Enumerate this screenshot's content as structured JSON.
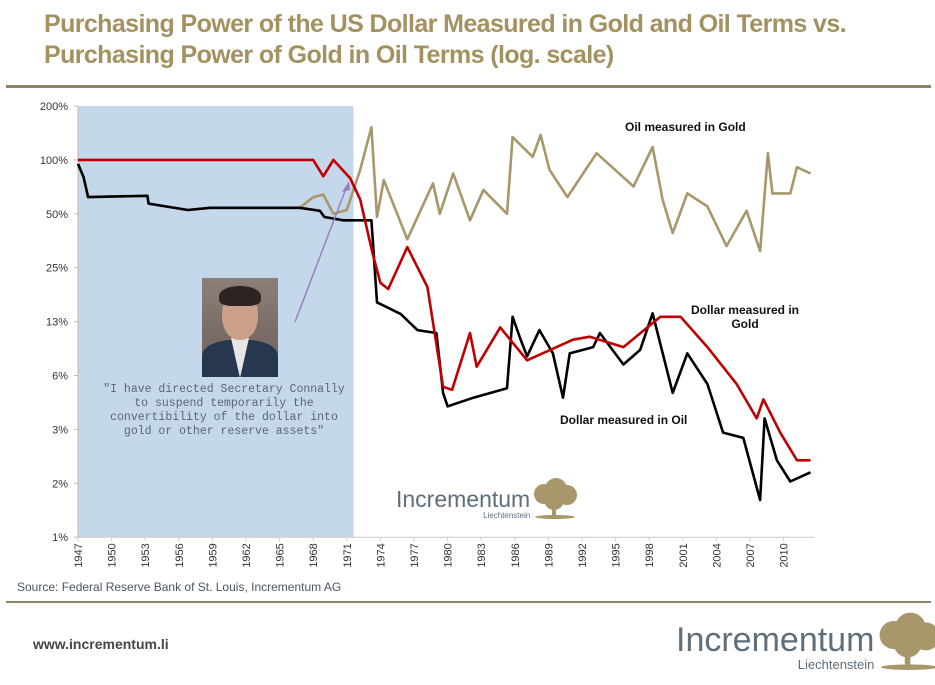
{
  "title": "Purchasing Power of the US Dollar Measured in Gold and Oil Terms vs. Purchasing Power of Gold in Oil Terms (log. scale)",
  "source": "Source: Federal Reserve Bank of St. Louis, Incrementum AG",
  "footer": {
    "url": "www.incrementum.li",
    "logo_name": "Incrementum",
    "logo_sub": "Liechtenstein"
  },
  "chart_logo": {
    "name": "Incrementum",
    "sub": "Liechtenstein"
  },
  "annotation": {
    "quote_lines": [
      "\"I have directed Secretary Connally",
      "to suspend temporarily the",
      "convertibility of the dollar into",
      "gold or other reserve assets\""
    ],
    "shaded_period": [
      1947,
      1971.6
    ]
  },
  "colors": {
    "title": "#a3915f",
    "gold_series": "#a8976a",
    "red_series": "#c00000",
    "black_series": "#000000",
    "shade": "#c5d7ea",
    "arrow": "#9b7fc0"
  },
  "chart_data": {
    "type": "line",
    "title": "Purchasing Power of the US Dollar Measured in Gold and Oil Terms vs. Purchasing Power of Gold in Oil Terms (log. scale)",
    "xlabel": "",
    "ylabel": "",
    "y_scale": "log",
    "xlim": [
      1947,
      2012.8
    ],
    "ylim": [
      0.78125,
      200
    ],
    "y_ticks": [
      {
        "value": 200,
        "label": "200%"
      },
      {
        "value": 100,
        "label": "100%"
      },
      {
        "value": 50,
        "label": "50%"
      },
      {
        "value": 25,
        "label": "25%"
      },
      {
        "value": 12.5,
        "label": "13%"
      },
      {
        "value": 6.25,
        "label": "6%"
      },
      {
        "value": 3.125,
        "label": "3%"
      },
      {
        "value": 1.5625,
        "label": "2%"
      },
      {
        "value": 0.78125,
        "label": "1%"
      }
    ],
    "x_ticks": [
      "1947",
      "1950",
      "1953",
      "1956",
      "1959",
      "1962",
      "1965",
      "1968",
      "1971",
      "1974",
      "1977",
      "1980",
      "1983",
      "1986",
      "1989",
      "1992",
      "1995",
      "1998",
      "2001",
      "2004",
      "2007",
      "2010"
    ],
    "grid": false,
    "series": [
      {
        "name": "Oil measured in Gold",
        "color": "#a8976a",
        "x": [
          1947,
          1947.5,
          1947.9,
          1953.2,
          1953.3,
          1956.8,
          1958.8,
          1966.8,
          1968,
          1968.9,
          1969.8,
          1971,
          1972.2,
          1973.2,
          1973.7,
          1974.3,
          1976.4,
          1978.7,
          1979.3,
          1980.5,
          1982,
          1983.2,
          1985.3,
          1985.8,
          1987.6,
          1988.3,
          1989.1,
          1990.7,
          1993.3,
          1995.7,
          1996.6,
          1998.3,
          1999.2,
          2000.1,
          2001.4,
          2003.2,
          2004.9,
          2006.7,
          2007.9,
          2008.6,
          2009,
          2010.6,
          2011.2,
          2012.4
        ],
        "y": [
          95,
          80,
          62,
          63,
          57,
          52.5,
          54,
          54,
          62,
          64,
          50,
          52.5,
          88,
          152,
          48,
          77,
          36,
          74,
          50,
          84,
          46,
          68,
          50,
          134,
          104,
          138,
          88,
          62,
          109,
          80,
          71,
          118,
          60,
          39,
          65,
          55,
          33,
          52,
          31,
          109,
          65,
          65,
          91,
          84
        ]
      },
      {
        "name": "Dollar measured in Gold",
        "color": "#c00000",
        "x": [
          1947,
          1968,
          1968.9,
          1969.8,
          1971.3,
          1972.2,
          1973.3,
          1974,
          1974.7,
          1976.4,
          1978.2,
          1979.6,
          1980.4,
          1982,
          1982.6,
          1984.7,
          1987.1,
          1991.2,
          1992.7,
          1995.7,
          1999,
          2000.8,
          2003.2,
          2005.8,
          2007.6,
          2008.2,
          2009.7,
          2011.2,
          2012.4
        ],
        "y": [
          100,
          100,
          81,
          100,
          79,
          60,
          30,
          20.6,
          19,
          32.6,
          19.5,
          5.4,
          5.2,
          10.8,
          7,
          11.6,
          7.6,
          9.9,
          10.3,
          9,
          13.3,
          13.3,
          9,
          5.6,
          3.6,
          4.6,
          3.0,
          2.1,
          2.1
        ]
      },
      {
        "name": "Dollar measured in Oil",
        "color": "#000000",
        "x": [
          1947,
          1947.5,
          1947.9,
          1953.2,
          1953.3,
          1956.8,
          1958.8,
          1966.8,
          1968.6,
          1969,
          1970.7,
          1973.2,
          1973.3,
          1973.7,
          1975.8,
          1977.3,
          1979,
          1979.6,
          1980,
          1982.3,
          1985.3,
          1985.8,
          1986.5,
          1987.1,
          1988.2,
          1989.4,
          1990.3,
          1990.9,
          1993,
          1993.6,
          1995.7,
          1997.2,
          1998.3,
          2000.1,
          2001.4,
          2003.2,
          2004.6,
          2006.4,
          2007.9,
          2008.3,
          2009.4,
          2010.6,
          2012.4
        ],
        "y": [
          95,
          80,
          62,
          63,
          57,
          52.5,
          54,
          54,
          52,
          48,
          46,
          46,
          37,
          16,
          13.8,
          11.2,
          10.8,
          5,
          4.2,
          4.7,
          5.3,
          13.3,
          10,
          8,
          11.2,
          8.3,
          4.7,
          8.3,
          9,
          10.8,
          7.2,
          8.7,
          13.9,
          5,
          8.3,
          5.6,
          3.0,
          2.8,
          1.26,
          3.6,
          2.1,
          1.6,
          1.8
        ]
      }
    ],
    "annotations": [
      {
        "text": "Oil measured in Gold"
      },
      {
        "text": "Dollar measured in Gold"
      },
      {
        "text": "Dollar measured in Oil"
      }
    ]
  }
}
